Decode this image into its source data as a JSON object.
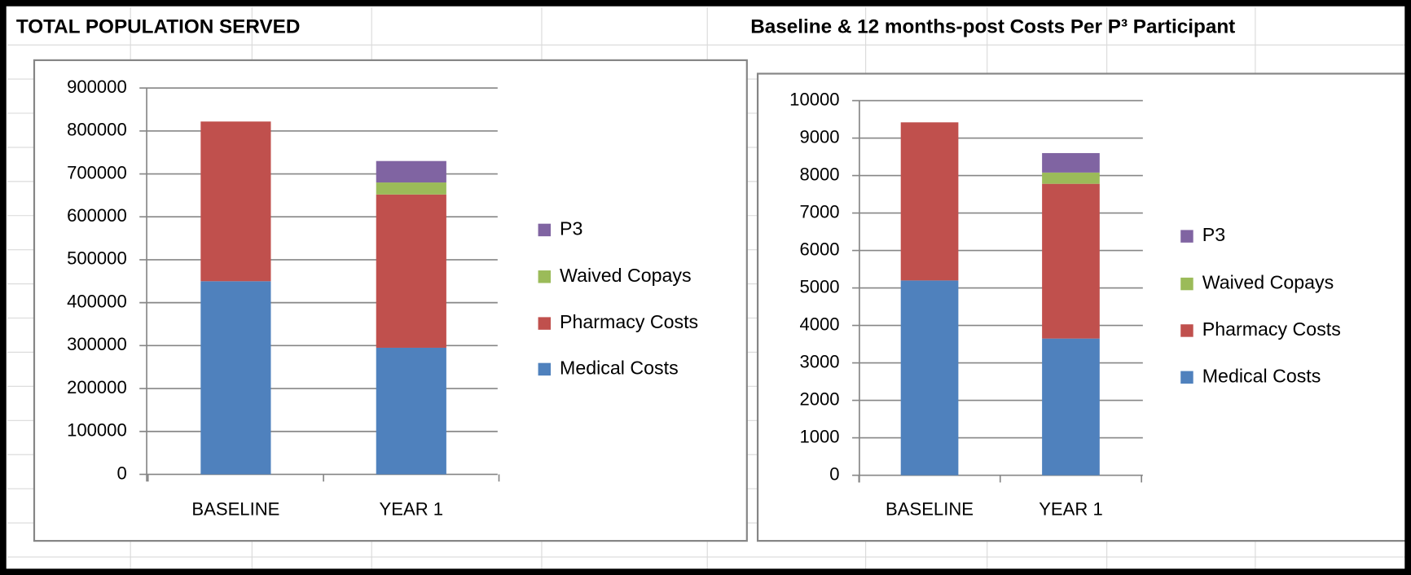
{
  "chart_data": [
    {
      "type": "bar",
      "stacked": true,
      "title": "TOTAL POPULATION SERVED",
      "categories": [
        "BASELINE",
        "YEAR 1"
      ],
      "series": [
        {
          "name": "Medical Costs",
          "color": "#4f81bd",
          "values": [
            450000,
            295000
          ]
        },
        {
          "name": "Pharmacy Costs",
          "color": "#c0504d",
          "values": [
            372000,
            357000
          ]
        },
        {
          "name": "Waived Copays",
          "color": "#9bbb59",
          "values": [
            0,
            28000
          ]
        },
        {
          "name": "P3",
          "color": "#8064a2",
          "values": [
            0,
            50000
          ]
        }
      ],
      "ylim": [
        0,
        900000
      ],
      "yticks": [
        0,
        100000,
        200000,
        300000,
        400000,
        500000,
        600000,
        700000,
        800000,
        900000
      ],
      "grid": true,
      "legend": "right"
    },
    {
      "type": "bar",
      "stacked": true,
      "title": "Baseline & 12 months-post Costs Per P³ Participant",
      "categories": [
        "BASELINE",
        "YEAR 1"
      ],
      "series": [
        {
          "name": "Medical Costs",
          "color": "#4f81bd",
          "values": [
            5200,
            3650
          ]
        },
        {
          "name": "Pharmacy Costs",
          "color": "#c0504d",
          "values": [
            4220,
            4130
          ]
        },
        {
          "name": "Waived Copays",
          "color": "#9bbb59",
          "values": [
            0,
            300
          ]
        },
        {
          "name": "P3",
          "color": "#8064a2",
          "values": [
            0,
            520
          ]
        }
      ],
      "ylim": [
        0,
        10000
      ],
      "yticks": [
        0,
        1000,
        2000,
        3000,
        4000,
        5000,
        6000,
        7000,
        8000,
        9000,
        10000
      ],
      "grid": true,
      "legend": "right"
    }
  ]
}
